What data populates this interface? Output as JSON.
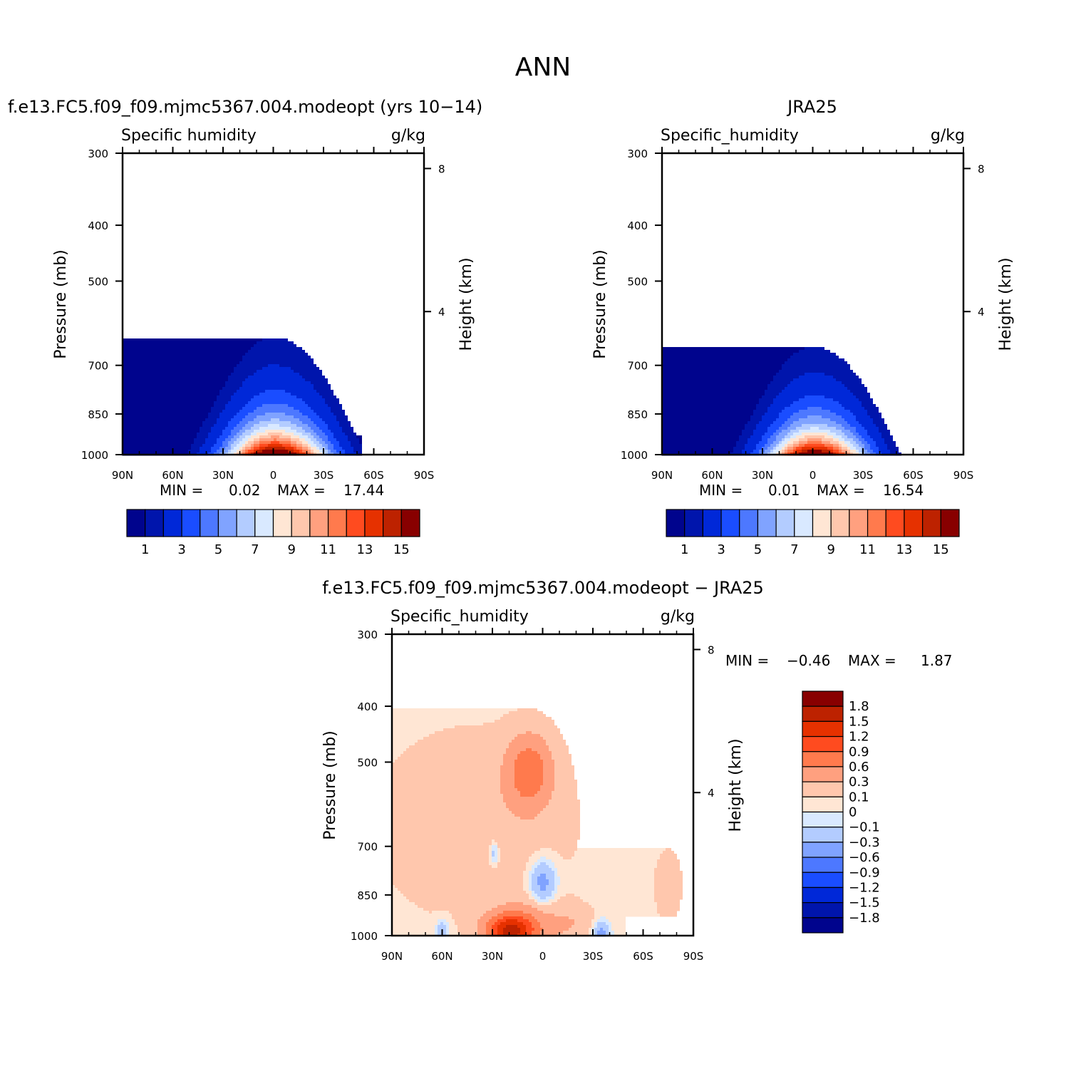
{
  "figure": {
    "title": "ANN"
  },
  "colors": {
    "abs_levels": [
      "#00048d",
      "#0015ac",
      "#0028d8",
      "#1a4dff",
      "#4d78ff",
      "#80a3ff",
      "#b3ccff",
      "#d9e9ff",
      "#ffe6d4",
      "#ffc7ad",
      "#ffa07f",
      "#ff7a4d",
      "#ff4b1f",
      "#e63100",
      "#bd2200",
      "#880000"
    ],
    "diff_levels": [
      "#00048d",
      "#0015ac",
      "#0028d8",
      "#1a4dff",
      "#4d78ff",
      "#80a3ff",
      "#b3ccff",
      "#d9e9ff",
      "#ffe6d4",
      "#ffc7ad",
      "#ffa07f",
      "#ff7a4d",
      "#ff4b1f",
      "#e63100",
      "#bd2200",
      "#880000"
    ]
  },
  "chart_data": [
    {
      "type": "heatmap",
      "title": "f.e13.FC5.f09_f09.mjmc5367.004.modeopt (yrs 10−14)",
      "left_string": "Specific humidity",
      "right_string": "g/kg",
      "xlabel": "",
      "ylabel": "Pressure (mb)",
      "ylabel_right": "Height (km)",
      "x_ticks": [
        "90N",
        "60N",
        "30N",
        "0",
        "30S",
        "60S",
        "90S"
      ],
      "x_range": [
        90,
        -90
      ],
      "y_ticks": [
        "300",
        "400",
        "500",
        "700",
        "850",
        "1000"
      ],
      "y_range": [
        1000,
        300
      ],
      "y_scale": "log",
      "right_ticks": [
        "8",
        "4"
      ],
      "min_label": "MIN =",
      "min_value": "0.02",
      "max_label": "MAX =",
      "max_value": "17.44",
      "colorbar_labels": [
        "1",
        "3",
        "5",
        "7",
        "9",
        "11",
        "13",
        "15"
      ],
      "contour_levels": [
        0.5,
        1,
        2,
        3,
        4,
        5,
        6,
        7,
        8,
        9,
        10,
        11,
        12,
        13,
        14,
        15
      ],
      "peak_lat": -2,
      "peak_value": 17.44,
      "peak_width": 28,
      "scale_height": 105,
      "missing_region": {
        "lat": [
          -53,
          -90
        ],
        "p": [
          925,
          1000
        ]
      }
    },
    {
      "type": "heatmap",
      "title": "JRA25",
      "left_string": "Specific_humidity",
      "right_string": "g/kg",
      "xlabel": "",
      "ylabel": "Pressure (mb)",
      "ylabel_right": "Height (km)",
      "x_ticks": [
        "90N",
        "60N",
        "30N",
        "0",
        "30S",
        "60S",
        "90S"
      ],
      "x_range": [
        90,
        -90
      ],
      "y_ticks": [
        "300",
        "400",
        "500",
        "700",
        "850",
        "1000"
      ],
      "y_range": [
        1000,
        300
      ],
      "y_scale": "log",
      "right_ticks": [
        "8",
        "4"
      ],
      "min_label": "MIN =",
      "min_value": "0.01",
      "max_label": "MAX =",
      "max_value": "16.54",
      "colorbar_labels": [
        "1",
        "3",
        "5",
        "7",
        "9",
        "11",
        "13",
        "15"
      ],
      "contour_levels": [
        0.5,
        1,
        2,
        3,
        4,
        5,
        6,
        7,
        8,
        9,
        10,
        11,
        12,
        13,
        14,
        15
      ],
      "peak_lat": -2,
      "peak_value": 16.54,
      "peak_width": 27,
      "scale_height": 100
    },
    {
      "type": "heatmap",
      "title": "f.e13.FC5.f09_f09.mjmc5367.004.modeopt − JRA25",
      "left_string": "Specific_humidity",
      "right_string": "g/kg",
      "xlabel": "",
      "ylabel": "Pressure (mb)",
      "ylabel_right": "Height (km)",
      "x_ticks": [
        "90N",
        "60N",
        "30N",
        "0",
        "30S",
        "60S",
        "90S"
      ],
      "x_range": [
        90,
        -90
      ],
      "y_ticks": [
        "300",
        "400",
        "500",
        "700",
        "850",
        "1000"
      ],
      "y_range": [
        1000,
        300
      ],
      "y_scale": "log",
      "right_ticks": [
        "8",
        "4"
      ],
      "min_label": "MIN =",
      "min_value": "−0.46",
      "max_label": "MAX =",
      "max_value": "1.87",
      "colorbar_labels": [
        "1.8",
        "1.5",
        "1.2",
        "0.9",
        "0.6",
        "0.3",
        "0.1",
        "0",
        "−0.1",
        "−0.3",
        "−0.6",
        "−0.9",
        "−1.2",
        "−1.5",
        "−1.8"
      ],
      "contour_levels": [
        -1.8,
        -1.5,
        -1.2,
        -0.9,
        -0.6,
        -0.3,
        -0.1,
        0,
        0.1,
        0.3,
        0.6,
        0.9,
        1.2,
        1.5,
        1.8
      ],
      "background_value": 0.05,
      "features": [
        {
          "lat": 40,
          "p": 640,
          "dlat": 55,
          "dlogp": 0.35,
          "value": 0.18
        },
        {
          "lat": 8,
          "p": 520,
          "dlat": 13,
          "dlogp": 0.14,
          "value": 0.75
        },
        {
          "lat": 20,
          "p": 985,
          "dlat": 14,
          "dlogp": 0.07,
          "value": 1.4
        },
        {
          "lat": 5,
          "p": 960,
          "dlat": 20,
          "dlogp": 0.1,
          "value": 0.35
        },
        {
          "lat": 0,
          "p": 810,
          "dlat": 8,
          "dlogp": 0.09,
          "value": -0.5
        },
        {
          "lat": 29,
          "p": 720,
          "dlat": 3,
          "dlogp": 0.05,
          "value": -0.35
        },
        {
          "lat": 60,
          "p": 990,
          "dlat": 4,
          "dlogp": 0.05,
          "value": -0.35
        },
        {
          "lat": -35,
          "p": 990,
          "dlat": 5,
          "dlogp": 0.05,
          "value": -0.45
        },
        {
          "lat": -20,
          "p": 950,
          "dlat": 12,
          "dlogp": 0.06,
          "value": 0.15
        },
        {
          "lat": -75,
          "p": 820,
          "dlat": 8,
          "dlogp": 0.14,
          "value": 0.15
        }
      ],
      "missing_region": {
        "lat": [
          -50,
          -90
        ],
        "p": [
          925,
          1000
        ]
      }
    }
  ]
}
